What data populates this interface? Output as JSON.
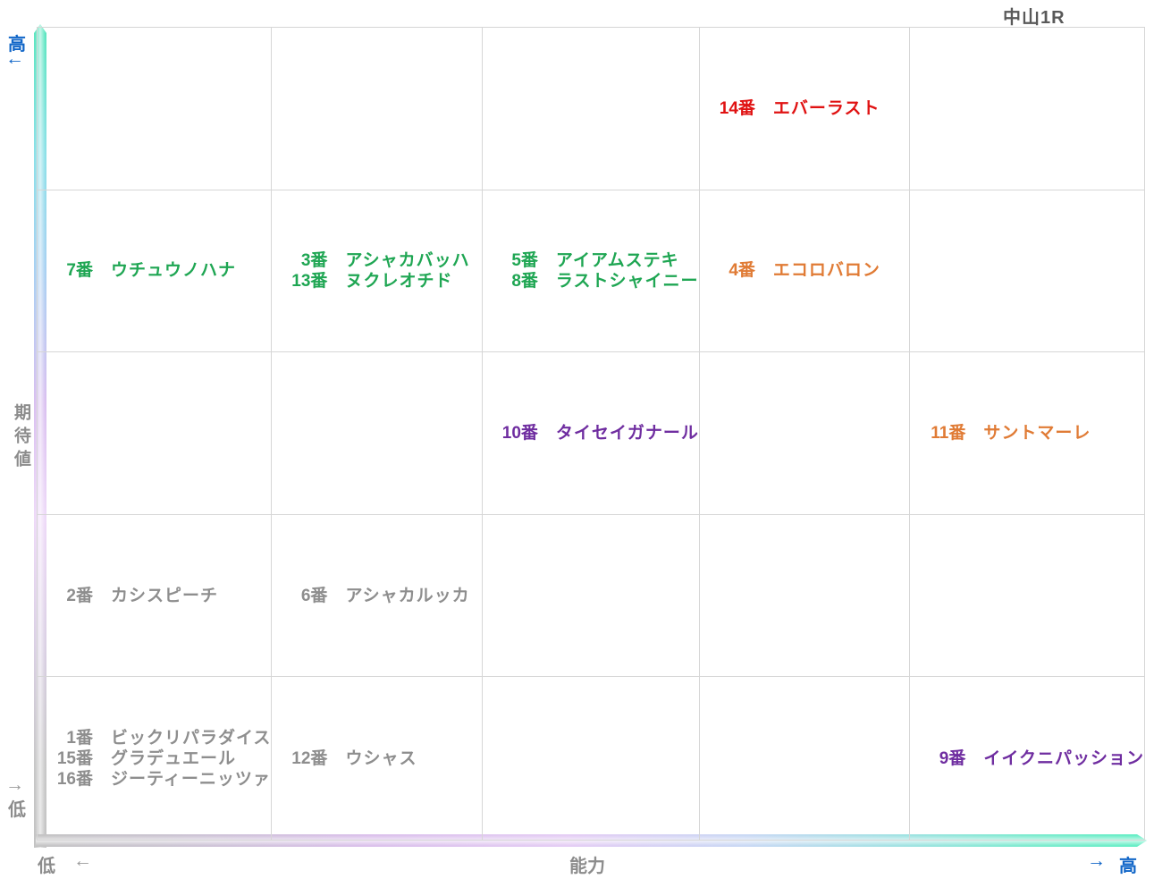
{
  "title": "中山1R",
  "axes": {
    "y": {
      "label": "期待値",
      "high_label": "高",
      "low_label": "低",
      "arrow_up": "←",
      "arrow_down": "→"
    },
    "x": {
      "label": "能力",
      "high_label": "高",
      "low_label": "低",
      "arrow_left": "←",
      "arrow_right": "→"
    }
  },
  "colors": {
    "favorite_red": "#e01212",
    "green": "#1fa653",
    "orange": "#e07b35",
    "purple": "#6f2da0",
    "neutral_gray": "#8e8e8e",
    "axis_blue": "#1166c8",
    "grid_line": "#d6d6d6",
    "title_gray": "#595959"
  },
  "chart_data": {
    "type": "scatter",
    "title": "中山1R",
    "xlabel": "能力",
    "ylabel": "期待値",
    "x_axis": {
      "low_label": "低",
      "high_label": "高"
    },
    "y_axis": {
      "low_label": "低",
      "high_label": "高"
    },
    "grid": {
      "columns": 5,
      "rows": 5,
      "grid_on": true
    },
    "number_suffix": "番",
    "points": [
      {
        "number": 14,
        "name": "エバーラスト",
        "col": 4,
        "row": 1,
        "color": "#e01212"
      },
      {
        "number": 7,
        "name": "ウチュウノハナ",
        "col": 1,
        "row": 2,
        "color": "#1fa653"
      },
      {
        "number": 3,
        "name": "アシャカバッハ",
        "col": 2,
        "row": 2,
        "color": "#1fa653"
      },
      {
        "number": 13,
        "name": "ヌクレオチド",
        "col": 2,
        "row": 2,
        "color": "#1fa653"
      },
      {
        "number": 5,
        "name": "アイアムステキ",
        "col": 3,
        "row": 2,
        "color": "#1fa653"
      },
      {
        "number": 8,
        "name": "ラストシャイニー",
        "col": 3,
        "row": 2,
        "color": "#1fa653"
      },
      {
        "number": 4,
        "name": "エコロバロン",
        "col": 4,
        "row": 2,
        "color": "#e07b35"
      },
      {
        "number": 10,
        "name": "タイセイガナール",
        "col": 3,
        "row": 3,
        "color": "#6f2da0"
      },
      {
        "number": 11,
        "name": "サントマーレ",
        "col": 5,
        "row": 3,
        "color": "#e07b35"
      },
      {
        "number": 2,
        "name": "カシスピーチ",
        "col": 1,
        "row": 4,
        "color": "#8e8e8e"
      },
      {
        "number": 6,
        "name": "アシャカルッカ",
        "col": 2,
        "row": 4,
        "color": "#8e8e8e"
      },
      {
        "number": 1,
        "name": "ビックリパラダイス",
        "col": 1,
        "row": 5,
        "color": "#8e8e8e"
      },
      {
        "number": 15,
        "name": "グラデュエール",
        "col": 1,
        "row": 5,
        "color": "#8e8e8e"
      },
      {
        "number": 16,
        "name": "ジーティーニッツァ",
        "col": 1,
        "row": 5,
        "color": "#8e8e8e"
      },
      {
        "number": 12,
        "name": "ウシャス",
        "col": 2,
        "row": 5,
        "color": "#8e8e8e"
      },
      {
        "number": 9,
        "name": "イイクニパッション",
        "col": 5,
        "row": 5,
        "color": "#6f2da0"
      }
    ]
  }
}
